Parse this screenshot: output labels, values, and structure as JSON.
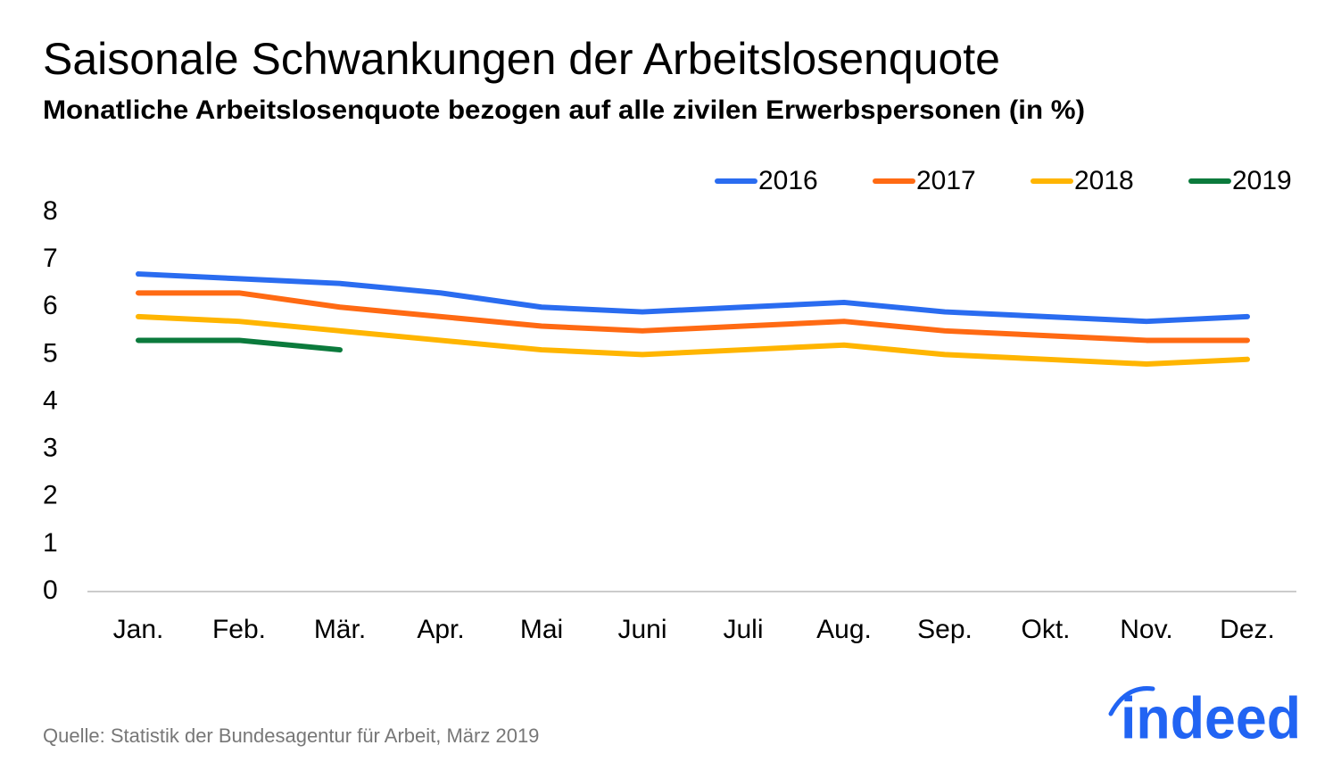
{
  "chart_data": {
    "type": "line",
    "title": "Saisonale Schwankungen der Arbeitslosenquote",
    "subtitle": "Monatliche Arbeitslosenquote bezogen auf alle zivilen Erwerbspersonen (in %)",
    "categories": [
      "Jan.",
      "Feb.",
      "Mär.",
      "Apr.",
      "Mai",
      "Juni",
      "Juli",
      "Aug.",
      "Sep.",
      "Okt.",
      "Nov.",
      "Dez."
    ],
    "series": [
      {
        "name": "2016",
        "color": "#2a6cf0",
        "values": [
          6.7,
          6.6,
          6.5,
          6.3,
          6.0,
          5.9,
          6.0,
          6.1,
          5.9,
          5.8,
          5.7,
          5.8
        ]
      },
      {
        "name": "2017",
        "color": "#ff6a13",
        "values": [
          6.3,
          6.3,
          6.0,
          5.8,
          5.6,
          5.5,
          5.6,
          5.7,
          5.5,
          5.4,
          5.3,
          5.3
        ]
      },
      {
        "name": "2018",
        "color": "#ffb500",
        "values": [
          5.8,
          5.7,
          5.5,
          5.3,
          5.1,
          5.0,
          5.1,
          5.2,
          5.0,
          4.9,
          4.8,
          4.9
        ]
      },
      {
        "name": "2019",
        "color": "#0b7a3c",
        "values": [
          5.3,
          5.3,
          5.1,
          null,
          null,
          null,
          null,
          null,
          null,
          null,
          null,
          null
        ]
      }
    ],
    "ylim": [
      0,
      8
    ],
    "yticks": [
      0,
      1,
      2,
      3,
      4,
      5,
      6,
      7,
      8
    ],
    "grid": false,
    "legend": "top-right",
    "source": "Quelle: Statistik der Bundesagentur für Arbeit, März 2019",
    "logo": "indeed"
  }
}
